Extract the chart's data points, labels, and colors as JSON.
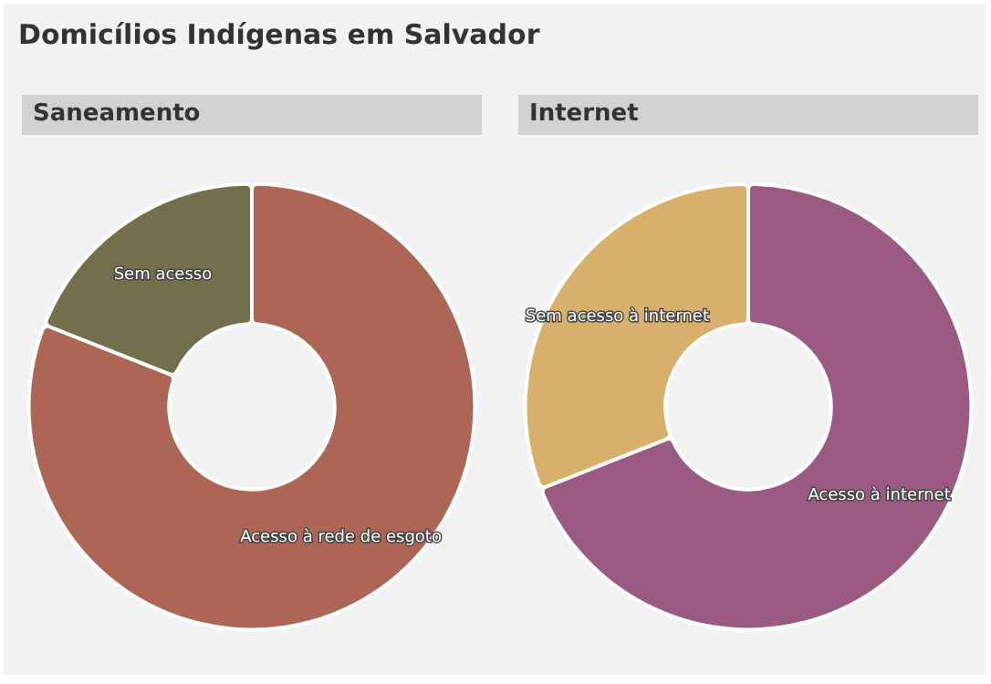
{
  "chart_data": [
    {
      "type": "donut",
      "title": "Saneamento",
      "annotations": [
        "Domicílios Indígenas em Salvador"
      ],
      "categories": [
        "Acesso à rede de esgoto",
        "Sem acesso"
      ],
      "values": [
        81,
        19
      ],
      "colors": [
        "#ad6655",
        "#736e4b"
      ],
      "legend": false
    },
    {
      "type": "donut",
      "title": "Internet",
      "categories": [
        "Acesso à internet",
        "Sem acesso à internet"
      ],
      "values": [
        69,
        31
      ],
      "colors": [
        "#9b5a82",
        "#d9b06b"
      ],
      "legend": false
    }
  ]
}
